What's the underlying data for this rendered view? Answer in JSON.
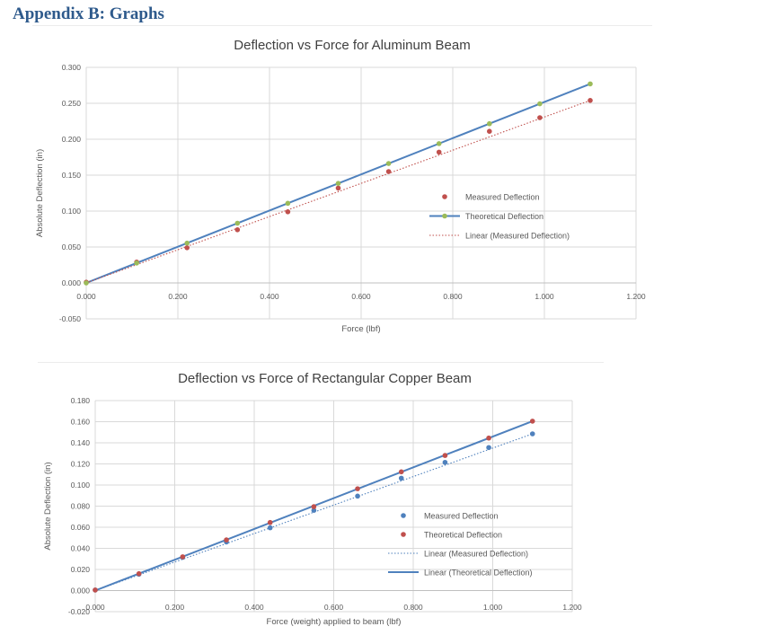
{
  "section_heading": "Appendix B: Graphs",
  "charts": {
    "colors": {
      "measured": "#c0504d",
      "theoretical_green": "#9bbb59",
      "line_blue": "#4f81bd",
      "blue_points": "#4f81bd",
      "grid": "#d9d9d9",
      "text": "#595959"
    }
  },
  "chart_data": [
    {
      "type": "scatter",
      "title": "Deflection vs Force for Aluminum Beam",
      "xlabel": "Force (lbf)",
      "ylabel": "Absolute Deflection (in)",
      "xlim": [
        0,
        1.2
      ],
      "ylim": [
        -0.05,
        0.3
      ],
      "x_ticks": [
        "0.000",
        "0.200",
        "0.400",
        "0.600",
        "0.800",
        "1.000",
        "1.200"
      ],
      "y_ticks": [
        "-0.050",
        "0.000",
        "0.050",
        "0.100",
        "0.150",
        "0.200",
        "0.250",
        "0.300"
      ],
      "grid": true,
      "legend_position": "right",
      "series": [
        {
          "name": "Measured Deflection",
          "kind": "points",
          "color": "#c0504d",
          "x": [
            0,
            0.11,
            0.22,
            0.33,
            0.44,
            0.55,
            0.66,
            0.77,
            0.88,
            0.99,
            1.1
          ],
          "y": [
            0.001,
            0.029,
            0.049,
            0.074,
            0.099,
            0.132,
            0.155,
            0.182,
            0.211,
            0.23,
            0.254
          ]
        },
        {
          "name": "Theoretical Deflection",
          "kind": "line-points",
          "color": "#4f81bd",
          "marker_color": "#9bbb59",
          "x": [
            0,
            0.11,
            0.22,
            0.33,
            0.44,
            0.55,
            0.66,
            0.77,
            0.88,
            0.99,
            1.1
          ],
          "y": [
            0,
            0.0277,
            0.0554,
            0.0831,
            0.1108,
            0.1385,
            0.1662,
            0.1939,
            0.2216,
            0.2493,
            0.277
          ]
        },
        {
          "name": "Linear (Measured Deflection)",
          "kind": "dotted-line",
          "color": "#c0504d",
          "x": [
            0,
            1.1
          ],
          "y": [
            0,
            0.254
          ]
        }
      ]
    },
    {
      "type": "scatter",
      "title": "Deflection vs Force of Rectangular Copper Beam",
      "xlabel": "Force (weight) applied to beam (lbf)",
      "ylabel": "Absolute Deflection (in)",
      "xlim": [
        0,
        1.2
      ],
      "ylim": [
        -0.02,
        0.18
      ],
      "x_ticks": [
        "0.000",
        "0.200",
        "0.400",
        "0.600",
        "0.800",
        "1.000",
        "1.200"
      ],
      "y_ticks": [
        "-0.020",
        "0.000",
        "0.020",
        "0.040",
        "0.060",
        "0.080",
        "0.100",
        "0.120",
        "0.140",
        "0.160",
        "0.180"
      ],
      "grid": true,
      "legend_position": "right",
      "series": [
        {
          "name": "Measured Deflection",
          "kind": "points",
          "color": "#4f81bd",
          "x": [
            0,
            0.11,
            0.22,
            0.33,
            0.44,
            0.55,
            0.66,
            0.77,
            0.88,
            0.99,
            1.1
          ],
          "y": [
            0.0005,
            0.0155,
            0.0315,
            0.046,
            0.0595,
            0.076,
            0.0895,
            0.1065,
            0.1215,
            0.1355,
            0.1485
          ]
        },
        {
          "name": "Theoretical Deflection",
          "kind": "points",
          "color": "#c0504d",
          "x": [
            0,
            0.11,
            0.22,
            0.33,
            0.44,
            0.55,
            0.66,
            0.77,
            0.88,
            0.99,
            1.1
          ],
          "y": [
            0.0005,
            0.016,
            0.032,
            0.048,
            0.0645,
            0.0795,
            0.0965,
            0.1125,
            0.128,
            0.1445,
            0.1605
          ]
        },
        {
          "name": "Linear (Measured Deflection)",
          "kind": "dotted-line",
          "color": "#4f81bd",
          "x": [
            0,
            1.1
          ],
          "y": [
            0,
            0.1485
          ]
        },
        {
          "name": "Linear (Theoretical Deflection)",
          "kind": "line",
          "color": "#4f81bd",
          "x": [
            0,
            1.1
          ],
          "y": [
            0,
            0.1605
          ]
        }
      ]
    }
  ]
}
